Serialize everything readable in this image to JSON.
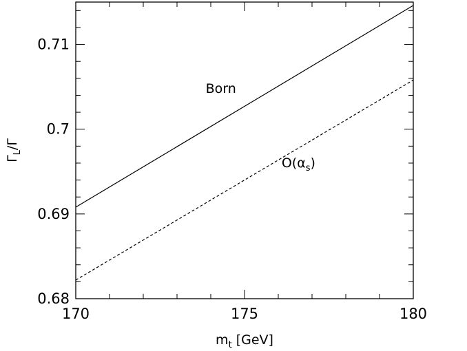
{
  "chart_data": {
    "type": "line",
    "xlabel": "m_t [GeV]",
    "ylabel": "Γ_L/Γ",
    "xlim": [
      170,
      180
    ],
    "ylim": [
      0.68,
      0.715
    ],
    "x_ticks": [
      {
        "value": 170,
        "label": "170"
      },
      {
        "value": 175,
        "label": "175"
      },
      {
        "value": 180,
        "label": "180"
      }
    ],
    "y_ticks": [
      {
        "value": 0.68,
        "label": "0.68"
      },
      {
        "value": 0.69,
        "label": "0.69"
      },
      {
        "value": 0.7,
        "label": "0.7"
      },
      {
        "value": 0.71,
        "label": "0.71"
      }
    ],
    "x_minor_step": 1,
    "y_minor_step": 0.002,
    "series": [
      {
        "name": "Born",
        "style": "solid",
        "color": "#000000",
        "x": [
          170,
          180
        ],
        "y": [
          0.6908,
          0.7146
        ]
      },
      {
        "name": "O(αs)",
        "style": "dashed",
        "color": "#000000",
        "x": [
          170,
          180
        ],
        "y": [
          0.6822,
          0.7058
        ]
      }
    ],
    "annotations": [
      {
        "series": "Born",
        "text": "Born",
        "x": 174.3,
        "y": 0.7043
      },
      {
        "series": "O(αs)",
        "text": "O(αs)",
        "x": 176.6,
        "y": 0.6955
      }
    ],
    "grid": false,
    "legend": "none"
  }
}
